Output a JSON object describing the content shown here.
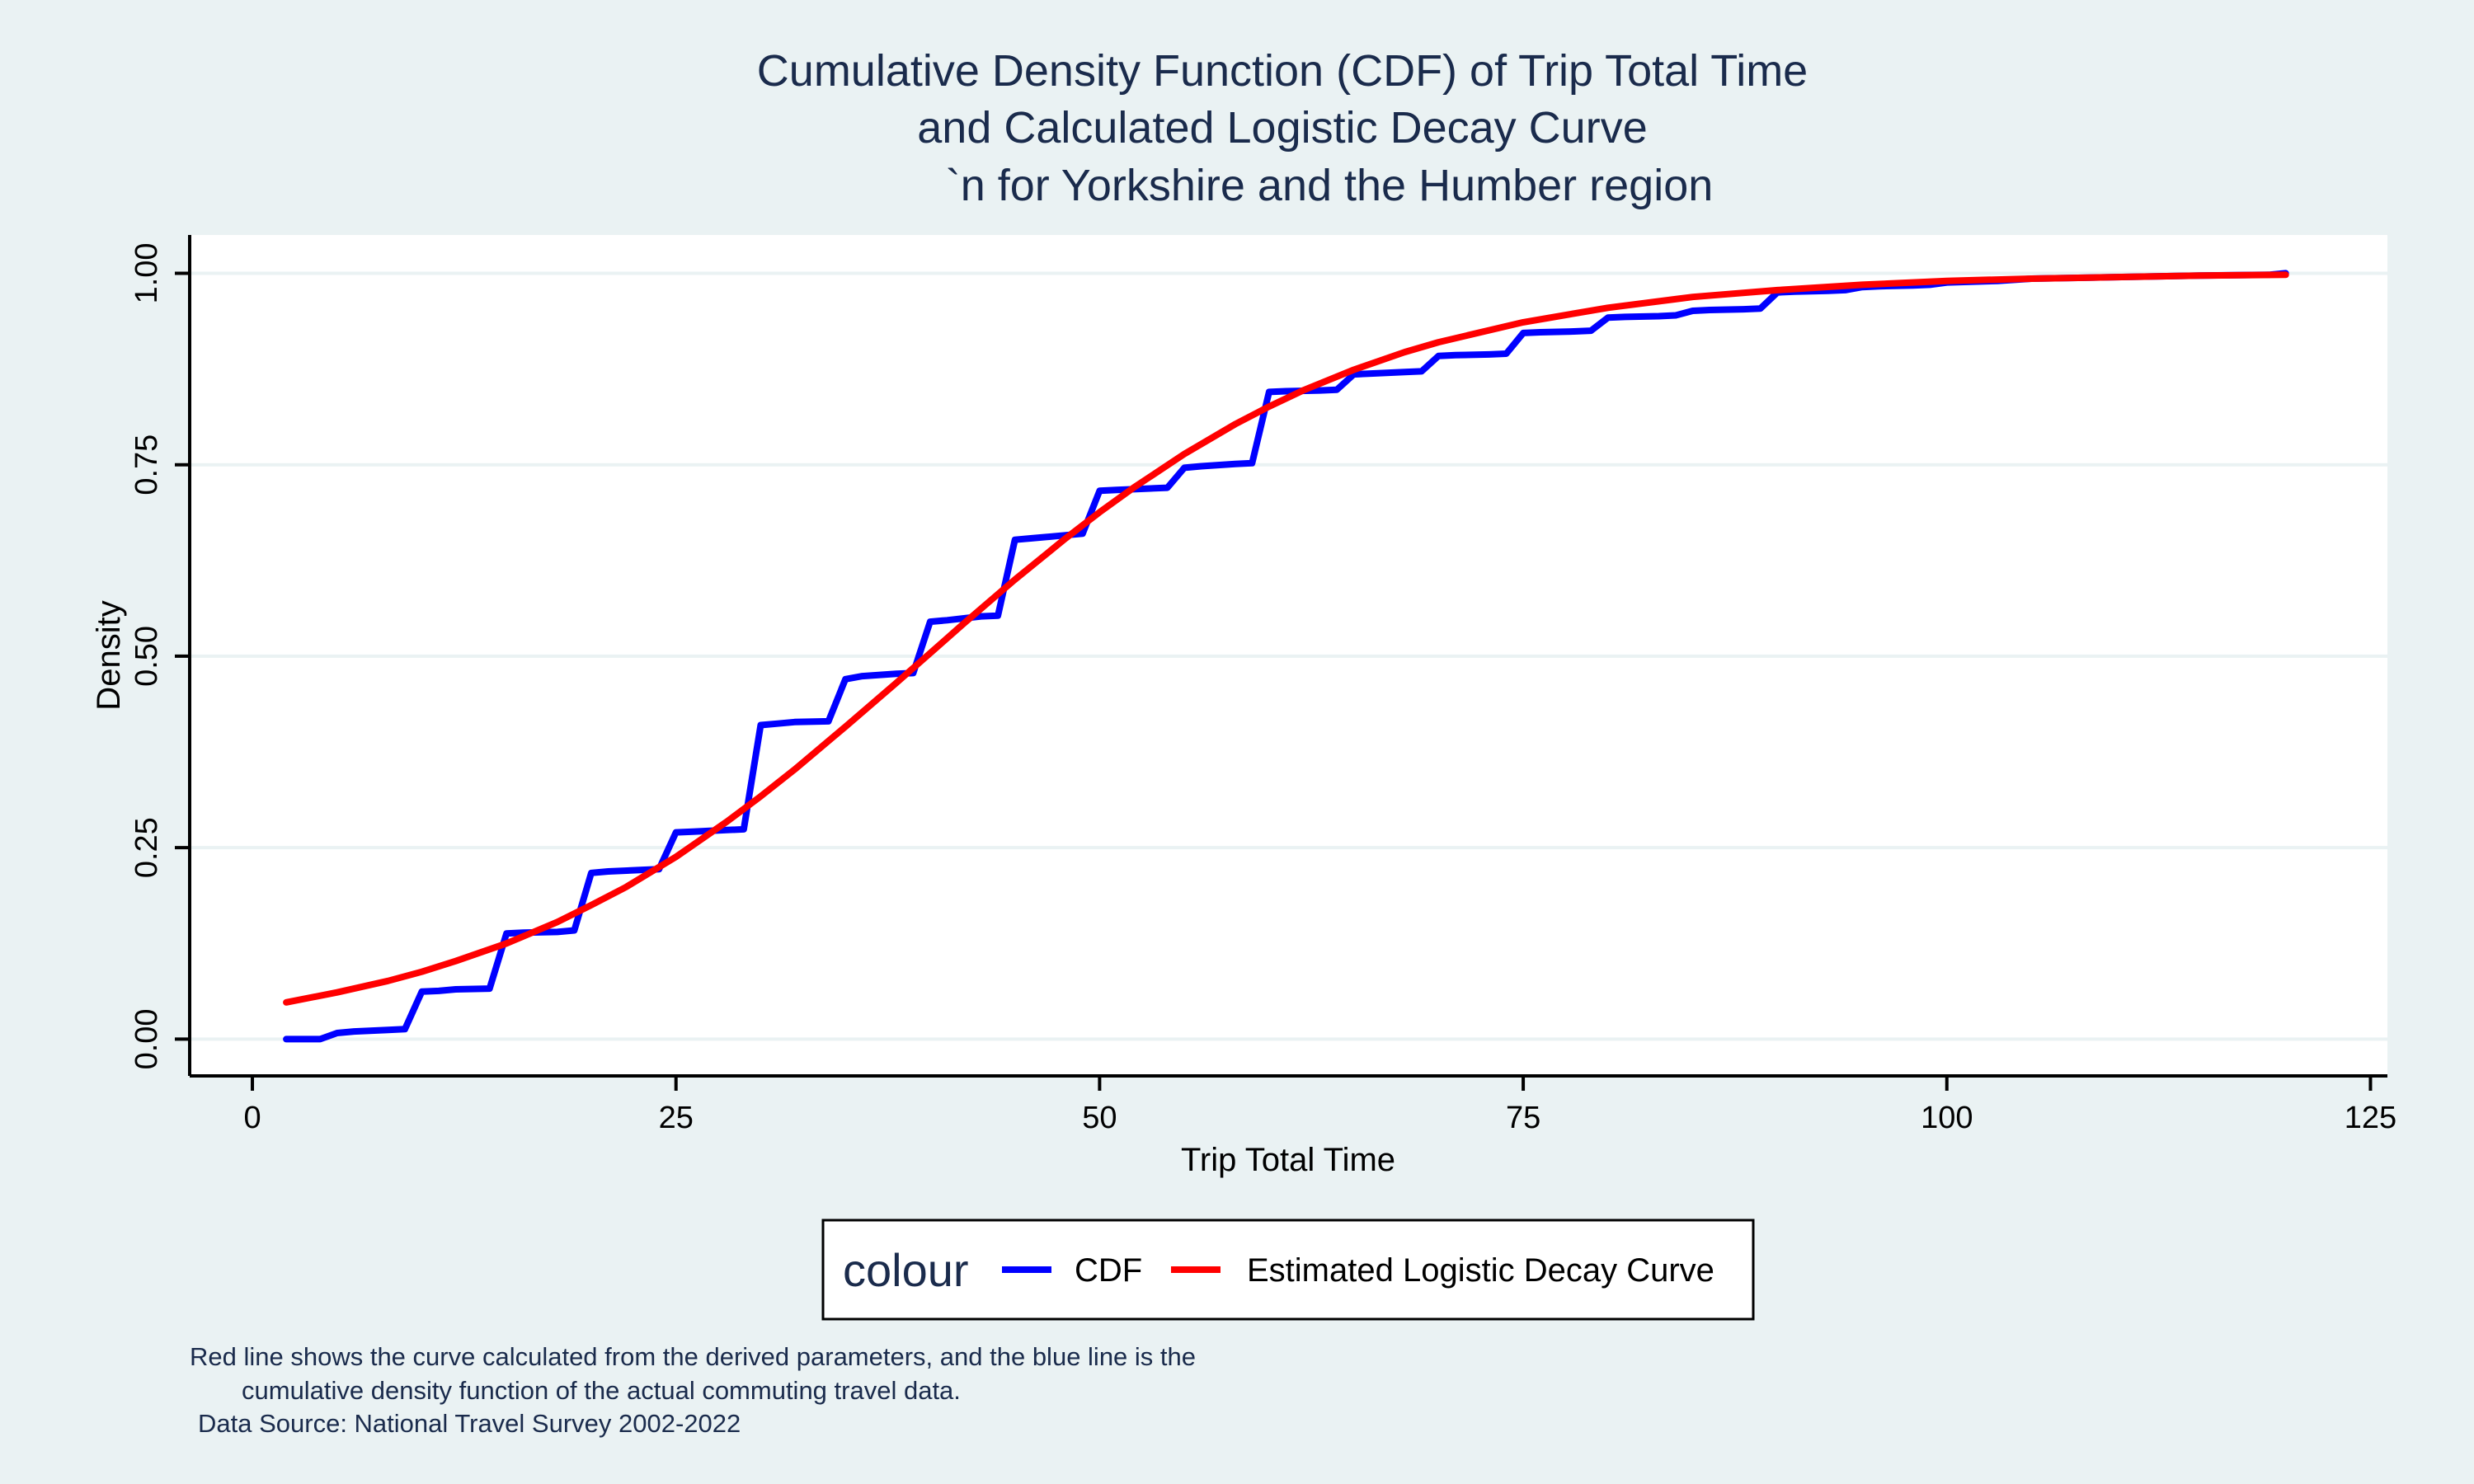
{
  "chart_data": {
    "type": "line",
    "title_lines": [
      "Cumulative Density Function (CDF) of Trip Total Time",
      "and Calculated Logistic Decay Curve",
      "`n for Yorkshire and the Humber region"
    ],
    "xlabel": "Trip Total Time",
    "ylabel": "Density",
    "xlim": [
      -3.7,
      126
    ],
    "ylim": [
      -0.048,
      1.05
    ],
    "x_ticks": [
      0,
      25,
      50,
      75,
      100,
      125
    ],
    "y_ticks": [
      0,
      0.25,
      0.5,
      0.75,
      1
    ],
    "x_tick_labels": [
      "0",
      "25",
      "50",
      "75",
      "100",
      "125"
    ],
    "y_tick_labels": [
      "0.00",
      "0.25",
      "0.50",
      "0.75",
      "1.00"
    ],
    "grid": true,
    "legend": {
      "title": "colour",
      "position": "bottom",
      "entries": [
        "CDF",
        "Estimated Logistic Decay Curve"
      ]
    },
    "series": [
      {
        "name": "CDF",
        "color": "#0000ff",
        "x": [
          2,
          4,
          5,
          6,
          8,
          9,
          10,
          11,
          12,
          14,
          15,
          16,
          18,
          19,
          20,
          21,
          23,
          24,
          25,
          26,
          28,
          29,
          30,
          31,
          32,
          34,
          35,
          36,
          38,
          39,
          40,
          41,
          43,
          44,
          45,
          46,
          48,
          49,
          50,
          51,
          53,
          54,
          55,
          56,
          58,
          59,
          60,
          61,
          63,
          64,
          65,
          66,
          68,
          69,
          70,
          71,
          73,
          74,
          75,
          76,
          78,
          79,
          80,
          81,
          83,
          84,
          85,
          86,
          88,
          89,
          90,
          91,
          93,
          94,
          95,
          96,
          98,
          99,
          100,
          103,
          105,
          110,
          115,
          119,
          120
        ],
        "y": [
          0.0,
          0.0,
          0.008,
          0.01,
          0.012,
          0.013,
          0.062,
          0.063,
          0.065,
          0.066,
          0.138,
          0.139,
          0.14,
          0.142,
          0.217,
          0.219,
          0.221,
          0.222,
          0.27,
          0.271,
          0.273,
          0.274,
          0.41,
          0.412,
          0.414,
          0.415,
          0.47,
          0.474,
          0.477,
          0.478,
          0.545,
          0.547,
          0.552,
          0.553,
          0.652,
          0.654,
          0.658,
          0.66,
          0.716,
          0.717,
          0.719,
          0.72,
          0.746,
          0.748,
          0.751,
          0.752,
          0.845,
          0.846,
          0.847,
          0.848,
          0.868,
          0.869,
          0.871,
          0.872,
          0.892,
          0.893,
          0.894,
          0.895,
          0.922,
          0.923,
          0.924,
          0.925,
          0.942,
          0.943,
          0.944,
          0.945,
          0.951,
          0.952,
          0.953,
          0.954,
          0.975,
          0.976,
          0.977,
          0.978,
          0.982,
          0.983,
          0.984,
          0.985,
          0.988,
          0.99,
          0.993,
          0.995,
          0.997,
          0.998,
          1.0
        ]
      },
      {
        "name": "Estimated Logistic Decay Curve",
        "color": "#ff0000",
        "x": [
          2,
          5,
          8,
          10,
          12,
          15,
          18,
          20,
          22,
          25,
          28,
          30,
          32,
          35,
          38,
          40,
          42,
          45,
          48,
          50,
          52,
          55,
          58,
          60,
          62,
          65,
          68,
          70,
          75,
          80,
          85,
          90,
          95,
          100,
          105,
          110,
          115,
          120
        ],
        "y": [
          0.048,
          0.061,
          0.076,
          0.088,
          0.102,
          0.125,
          0.153,
          0.175,
          0.198,
          0.238,
          0.284,
          0.317,
          0.352,
          0.408,
          0.465,
          0.504,
          0.543,
          0.6,
          0.654,
          0.688,
          0.72,
          0.764,
          0.803,
          0.826,
          0.847,
          0.874,
          0.897,
          0.91,
          0.936,
          0.955,
          0.969,
          0.978,
          0.985,
          0.99,
          0.993,
          0.995,
          0.997,
          0.998
        ]
      }
    ]
  },
  "notes": [
    "Red line shows the curve calculated from the derived parameters, and the blue line is the",
    "cumulative density function of the actual commuting travel data.",
    "Data Source: National Travel Survey 2002-2022"
  ]
}
